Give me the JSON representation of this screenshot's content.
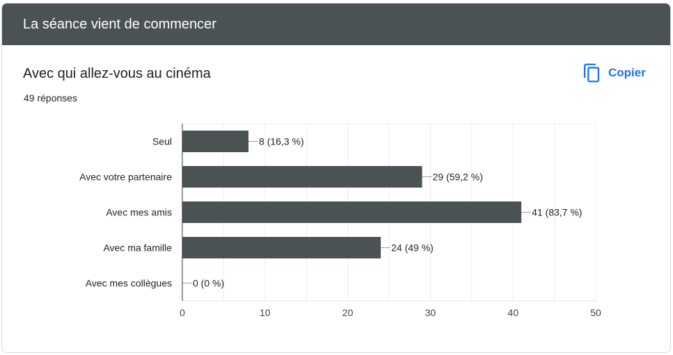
{
  "header": {
    "title": "La séance vient de commencer"
  },
  "question": {
    "title": "Avec qui allez-vous au cinéma",
    "responses": "49 réponses"
  },
  "toolbar": {
    "copy_label": "Copier",
    "copy_icon": "copy-icon"
  },
  "colors": {
    "header_bg": "#4b5254",
    "bar": "#4b5254",
    "accent": "#1a73e8"
  },
  "chart_data": {
    "type": "bar",
    "orientation": "horizontal",
    "categories": [
      "Seul",
      "Avec votre partenaire",
      "Avec mes amis",
      "Avec ma famille",
      "Avec mes collègues"
    ],
    "values": [
      8,
      29,
      41,
      24,
      0
    ],
    "data_labels": [
      "8 (16,3 %)",
      "29 (59,2 %)",
      "41 (83,7 %)",
      "24 (49 %)",
      "0 (0 %)"
    ],
    "xlim": [
      0,
      50
    ],
    "xticks": [
      0,
      10,
      20,
      30,
      40,
      50
    ],
    "grid": true,
    "legend": "none"
  }
}
